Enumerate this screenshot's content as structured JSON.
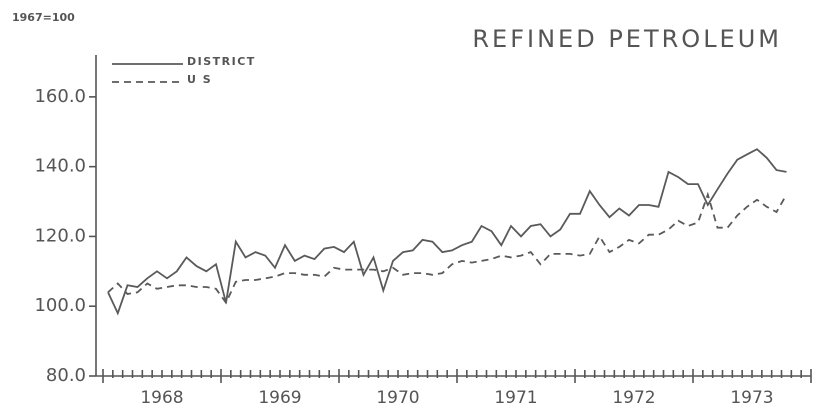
{
  "chart_data": {
    "type": "line",
    "title": "REFINED PETROLEUM",
    "subtitle": "1967=100",
    "xlim": [
      1968,
      1974
    ],
    "xticks": [
      1968,
      1969,
      1970,
      1971,
      1972,
      1973,
      1974
    ],
    "year_labels": [
      "1968",
      "1969",
      "1970",
      "1971",
      "1972",
      "1973"
    ],
    "ylim": [
      80,
      172
    ],
    "yticks": [
      {
        "value": 80,
        "label": "80.0"
      },
      {
        "value": 100,
        "label": "100.0"
      },
      {
        "value": 120,
        "label": "120.0"
      },
      {
        "value": 140,
        "label": "140.0"
      },
      {
        "value": 160,
        "label": "160.0"
      }
    ],
    "legend": "top-left",
    "x": [
      1968.042,
      1968.125,
      1968.208,
      1968.292,
      1968.375,
      1968.458,
      1968.542,
      1968.625,
      1968.708,
      1968.792,
      1968.875,
      1968.958,
      1969.042,
      1969.125,
      1969.208,
      1969.292,
      1969.375,
      1969.458,
      1969.542,
      1969.625,
      1969.708,
      1969.792,
      1969.875,
      1969.958,
      1970.042,
      1970.125,
      1970.208,
      1970.292,
      1970.375,
      1970.458,
      1970.542,
      1970.625,
      1970.708,
      1970.792,
      1970.875,
      1970.958,
      1971.042,
      1971.125,
      1971.208,
      1971.292,
      1971.375,
      1971.458,
      1971.542,
      1971.625,
      1971.708,
      1971.792,
      1971.875,
      1971.958,
      1972.042,
      1972.125,
      1972.208,
      1972.292,
      1972.375,
      1972.458,
      1972.542,
      1972.625,
      1972.708,
      1972.792,
      1972.875,
      1972.958,
      1973.042,
      1973.125,
      1973.208,
      1973.292,
      1973.375,
      1973.458,
      1973.542,
      1973.625,
      1973.708,
      1973.792
    ],
    "series": [
      {
        "name": "DISTRICT",
        "color": "#5a5a5a",
        "dash": "solid",
        "values": [
          104,
          98,
          106,
          105.5,
          108,
          110,
          108,
          110,
          114,
          111.5,
          110,
          112,
          101,
          118.5,
          114,
          115.5,
          114.5,
          111,
          117.5,
          113,
          114.5,
          113.5,
          116.5,
          117,
          115.5,
          118.5,
          109,
          114,
          104.5,
          113,
          115.5,
          116,
          119,
          118.5,
          115.5,
          116,
          117.5,
          118.5,
          123,
          121.5,
          117.5,
          123,
          120,
          123,
          123.5,
          120,
          122,
          126.5,
          126.5,
          133,
          129,
          125.5,
          128,
          126,
          129,
          129,
          128.5,
          138.5,
          137,
          135,
          135,
          129,
          133.5,
          138,
          142,
          143.5,
          145,
          142.5,
          139,
          138.5
        ]
      },
      {
        "name": "U S",
        "color": "#5a5a5a",
        "dash": "dashed",
        "values": [
          104,
          106.5,
          103.5,
          104,
          106.5,
          105,
          105.5,
          106,
          106,
          105.5,
          105.5,
          105,
          101,
          107,
          107.5,
          107.5,
          108,
          108.5,
          109.5,
          109.5,
          109,
          109,
          108.5,
          111,
          110.5,
          110.5,
          110.5,
          110.5,
          110,
          111,
          109,
          109.5,
          109.5,
          109,
          109.5,
          112,
          113,
          112.5,
          113,
          113.5,
          114.5,
          114,
          114.5,
          115.5,
          112,
          115,
          115,
          115,
          114.5,
          115,
          120,
          115.5,
          117,
          119,
          118,
          120.5,
          120.5,
          122,
          124.5,
          123,
          124,
          132,
          122.5,
          122.5,
          126,
          128.5,
          130.5,
          128.5,
          127,
          132
        ]
      }
    ]
  }
}
